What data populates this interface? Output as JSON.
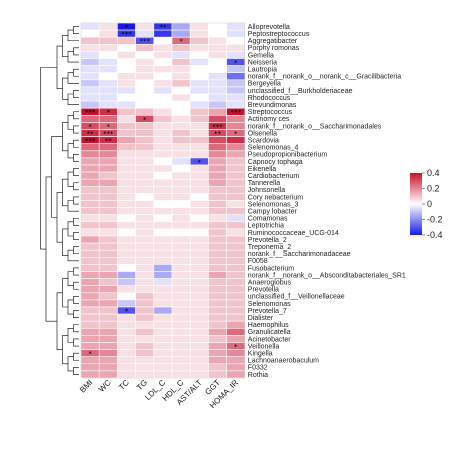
{
  "chart_data": {
    "type": "heatmap",
    "title": "",
    "xlabel": "",
    "ylabel": "",
    "columns": [
      "BMI",
      "WC",
      "TC",
      "TG",
      "LDL_C",
      "HDL_C",
      "AST/ALT",
      "GGT",
      "HOMA_IR"
    ],
    "rows": [
      "Alloprevotella",
      "Peptostreptococcus",
      "Aggregatibacter",
      "Porphy romonas",
      "Gemella",
      "Neisseria",
      "Lautropia",
      "norank_f__norank_o__norank_c__Gracilibacteria",
      "Bergeyella",
      "unclassified_f__Burkholderiaceae",
      "Rhodococcus",
      "Brevundimonas",
      "Streptococcus",
      "Actinomy ces",
      "norank_f__norank_o__Saccharimonadales",
      "Olsenella",
      "Scardovia",
      "Selenomonas_4",
      "Pseudopropionibacterium",
      "Capnocy tophaga",
      "Eikenella",
      "Cardiobacterium",
      "Tannerella",
      "Johnsonella",
      "Cory nebacterium",
      "Selenomonas_3",
      "Campy lobacter",
      "Comamonas",
      "Leptotrichia",
      "Ruminococcaceae_UCG-014",
      "Prevotella_2",
      "Treponema_2",
      "norank_f__Saccharimonadaceae",
      "F0058",
      "Fusobacterium",
      "norank_f__norank_o__Absconditabacteriales_SR1",
      "Anaeroglobus",
      "Prevotella",
      "unclassified_f__Veillonellaceae",
      "Selenomonas",
      "Prevotella_7",
      "Dialister",
      "Haemophilus",
      "Granulicatella",
      "Acinetobacter",
      "Veillonella",
      "Kingella",
      "Lachnoanaerobaculum",
      "F0332",
      "Rothia"
    ],
    "values": [
      [
        -0.05,
        0.05,
        -0.4,
        0.05,
        -0.35,
        -0.15,
        0.05,
        0.0,
        -0.05
      ],
      [
        0.0,
        0.05,
        -0.35,
        -0.05,
        -0.35,
        -0.15,
        0.05,
        0.0,
        -0.05
      ],
      [
        0.1,
        0.1,
        0.1,
        -0.3,
        0.0,
        0.25,
        0.1,
        0.05,
        0.0
      ],
      [
        0.05,
        0.05,
        0.0,
        0.1,
        0.05,
        0.1,
        0.05,
        0.05,
        0.05
      ],
      [
        -0.05,
        0.0,
        0.05,
        0.0,
        0.05,
        -0.05,
        0.0,
        0.05,
        -0.05
      ],
      [
        -0.1,
        -0.05,
        0.0,
        0.05,
        0.0,
        0.1,
        -0.05,
        0.0,
        -0.3
      ],
      [
        -0.05,
        -0.05,
        0.0,
        0.05,
        0.05,
        0.05,
        0.0,
        0.0,
        -0.1
      ],
      [
        -0.05,
        0.0,
        0.05,
        0.05,
        0.0,
        0.05,
        0.0,
        -0.05,
        -0.25
      ],
      [
        -0.1,
        -0.05,
        0.05,
        0.0,
        0.05,
        0.1,
        -0.05,
        -0.05,
        -0.1
      ],
      [
        -0.05,
        -0.05,
        -0.05,
        0.0,
        -0.05,
        0.0,
        -0.05,
        -0.05,
        -0.1
      ],
      [
        -0.05,
        -0.05,
        0.0,
        0.0,
        0.0,
        0.05,
        0.0,
        -0.05,
        -0.05
      ],
      [
        -0.1,
        -0.05,
        -0.05,
        0.0,
        0.0,
        0.0,
        -0.05,
        -0.1,
        -0.05
      ],
      [
        0.4,
        0.35,
        0.1,
        0.1,
        0.05,
        0.0,
        0.1,
        0.15,
        0.4
      ],
      [
        0.25,
        0.25,
        0.05,
        0.3,
        0.1,
        0.05,
        0.1,
        0.3,
        0.2
      ],
      [
        0.3,
        0.25,
        0.1,
        0.1,
        0.05,
        0.05,
        0.05,
        0.35,
        0.2
      ],
      [
        0.35,
        0.3,
        0.1,
        0.1,
        0.05,
        0.1,
        0.05,
        0.3,
        0.25
      ],
      [
        0.4,
        0.35,
        0.15,
        0.1,
        0.05,
        0.1,
        0.1,
        0.3,
        0.35
      ],
      [
        0.25,
        0.25,
        0.1,
        0.1,
        0.05,
        0.05,
        0.05,
        0.25,
        0.2
      ],
      [
        0.2,
        0.2,
        0.05,
        0.05,
        0.05,
        0.05,
        0.05,
        0.2,
        0.15
      ],
      [
        0.15,
        0.15,
        0.05,
        0.05,
        0.0,
        -0.05,
        -0.3,
        0.15,
        0.1
      ],
      [
        0.15,
        0.15,
        0.05,
        0.05,
        0.05,
        0.0,
        0.05,
        0.15,
        0.1
      ],
      [
        0.15,
        0.1,
        0.05,
        0.05,
        0.0,
        0.05,
        0.05,
        0.15,
        0.1
      ],
      [
        0.15,
        0.15,
        0.05,
        0.05,
        0.05,
        0.05,
        0.05,
        0.15,
        0.1
      ],
      [
        0.1,
        0.1,
        0.05,
        0.05,
        0.05,
        0.05,
        0.05,
        0.1,
        0.1
      ],
      [
        0.1,
        0.1,
        0.05,
        0.0,
        0.05,
        0.05,
        0.0,
        0.1,
        0.1
      ],
      [
        0.1,
        0.1,
        0.05,
        0.05,
        0.0,
        0.0,
        0.05,
        0.1,
        0.05
      ],
      [
        0.1,
        0.1,
        0.05,
        0.05,
        0.05,
        0.05,
        0.05,
        0.1,
        0.1
      ],
      [
        0.05,
        0.05,
        0.0,
        0.05,
        0.0,
        0.05,
        0.0,
        0.05,
        -0.05
      ],
      [
        0.1,
        0.1,
        0.05,
        0.05,
        0.05,
        0.05,
        0.05,
        0.1,
        0.1
      ],
      [
        0.05,
        0.05,
        0.0,
        0.05,
        0.0,
        0.0,
        0.0,
        0.1,
        0.05
      ],
      [
        0.15,
        0.1,
        0.05,
        0.05,
        0.05,
        0.05,
        0.05,
        0.1,
        0.1
      ],
      [
        0.1,
        0.1,
        0.05,
        0.05,
        0.05,
        0.05,
        0.05,
        0.1,
        0.1
      ],
      [
        0.1,
        0.1,
        0.05,
        0.05,
        0.05,
        0.05,
        0.05,
        0.1,
        0.1
      ],
      [
        0.1,
        0.1,
        0.05,
        0.05,
        0.05,
        0.05,
        0.05,
        0.1,
        0.1
      ],
      [
        0.1,
        0.1,
        0.0,
        0.05,
        -0.15,
        0.05,
        0.05,
        0.1,
        0.1
      ],
      [
        0.15,
        0.15,
        -0.15,
        0.05,
        -0.15,
        0.05,
        0.05,
        0.15,
        0.1
      ],
      [
        0.15,
        0.1,
        -0.1,
        0.05,
        -0.05,
        0.05,
        0.05,
        0.1,
        0.1
      ],
      [
        0.15,
        0.15,
        0.05,
        0.05,
        0.05,
        0.05,
        0.05,
        0.1,
        0.1
      ],
      [
        0.15,
        0.1,
        0.0,
        0.1,
        0.05,
        0.05,
        0.05,
        0.1,
        0.1
      ],
      [
        0.15,
        0.15,
        -0.1,
        0.1,
        0.05,
        0.05,
        0.05,
        0.1,
        0.1
      ],
      [
        0.1,
        0.1,
        -0.3,
        0.1,
        -0.15,
        0.05,
        0.05,
        0.1,
        0.1
      ],
      [
        0.1,
        0.1,
        0.05,
        0.1,
        0.05,
        0.05,
        0.05,
        0.1,
        0.1
      ],
      [
        0.1,
        0.1,
        0.05,
        0.05,
        0.05,
        0.05,
        0.05,
        0.1,
        0.15
      ],
      [
        0.15,
        0.15,
        0.05,
        0.1,
        0.05,
        0.05,
        0.05,
        0.15,
        0.25
      ],
      [
        0.15,
        0.15,
        0.05,
        0.05,
        0.05,
        0.05,
        0.05,
        0.1,
        0.15
      ],
      [
        0.15,
        0.15,
        0.05,
        0.1,
        0.05,
        0.05,
        0.05,
        0.15,
        0.25
      ],
      [
        0.25,
        0.2,
        0.05,
        0.1,
        0.05,
        0.05,
        0.05,
        0.15,
        0.2
      ],
      [
        0.15,
        0.15,
        0.05,
        0.05,
        0.05,
        0.05,
        0.05,
        0.15,
        0.15
      ],
      [
        0.15,
        0.15,
        0.05,
        0.05,
        0.05,
        0.05,
        0.05,
        0.1,
        0.15
      ],
      [
        0.15,
        0.15,
        0.05,
        0.05,
        0.05,
        0.05,
        0.05,
        0.1,
        0.15
      ]
    ],
    "significance": [
      [
        "",
        "",
        "*",
        "",
        "**",
        "",
        "",
        "",
        ""
      ],
      [
        "",
        "",
        "***",
        "",
        "",
        "",
        "",
        "",
        ""
      ],
      [
        "",
        "",
        "",
        "***",
        "",
        "*",
        "",
        "",
        ""
      ],
      [
        "",
        "",
        "",
        "",
        "",
        "",
        "",
        "",
        ""
      ],
      [
        "",
        "",
        "",
        "",
        "",
        "",
        "",
        "",
        ""
      ],
      [
        "",
        "",
        "",
        "",
        "",
        "",
        "",
        "",
        "*"
      ],
      [
        "",
        "",
        "",
        "",
        "",
        "",
        "",
        "",
        ""
      ],
      [
        "",
        "",
        "",
        "",
        "",
        "",
        "",
        "",
        ""
      ],
      [
        "",
        "",
        "",
        "",
        "",
        "",
        "",
        "",
        ""
      ],
      [
        "",
        "",
        "",
        "",
        "",
        "",
        "",
        "",
        ""
      ],
      [
        "",
        "",
        "",
        "",
        "",
        "",
        "",
        "",
        ""
      ],
      [
        "",
        "",
        "",
        "",
        "",
        "",
        "",
        "",
        ""
      ],
      [
        "***",
        "*",
        "",
        "",
        "",
        "",
        "",
        "",
        "***"
      ],
      [
        "",
        "",
        "",
        "*",
        "",
        "",
        "",
        "",
        ""
      ],
      [
        "*",
        "*",
        "",
        "",
        "",
        "",
        "",
        "***",
        ""
      ],
      [
        "**",
        "***",
        "",
        "",
        "",
        "",
        "",
        "**",
        "*"
      ],
      [
        "***",
        "**",
        "",
        "",
        "",
        "",
        "",
        "",
        ""
      ],
      [
        "",
        "",
        "",
        "",
        "",
        "",
        "",
        "",
        ""
      ],
      [
        "",
        "",
        "",
        "",
        "",
        "",
        "",
        "",
        ""
      ],
      [
        "",
        "",
        "",
        "",
        "",
        "",
        "*",
        "",
        ""
      ],
      [
        "",
        "",
        "",
        "",
        "",
        "",
        "",
        "",
        ""
      ],
      [
        "",
        "",
        "",
        "",
        "",
        "",
        "",
        "",
        ""
      ],
      [
        "",
        "",
        "",
        "",
        "",
        "",
        "",
        "",
        ""
      ],
      [
        "",
        "",
        "",
        "",
        "",
        "",
        "",
        "",
        ""
      ],
      [
        "",
        "",
        "",
        "",
        "",
        "",
        "",
        "",
        ""
      ],
      [
        "",
        "",
        "",
        "",
        "",
        "",
        "",
        "",
        ""
      ],
      [
        "",
        "",
        "",
        "",
        "",
        "",
        "",
        "",
        ""
      ],
      [
        "",
        "",
        "",
        "",
        "",
        "",
        "",
        "",
        ""
      ],
      [
        "",
        "",
        "",
        "",
        "",
        "",
        "",
        "",
        ""
      ],
      [
        "",
        "",
        "",
        "",
        "",
        "",
        "",
        "",
        ""
      ],
      [
        "",
        "",
        "",
        "",
        "",
        "",
        "",
        "",
        ""
      ],
      [
        "",
        "",
        "",
        "",
        "",
        "",
        "",
        "",
        ""
      ],
      [
        "",
        "",
        "",
        "",
        "",
        "",
        "",
        "",
        ""
      ],
      [
        "",
        "",
        "",
        "",
        "",
        "",
        "",
        "",
        ""
      ],
      [
        "",
        "",
        "",
        "",
        "",
        "",
        "",
        "",
        ""
      ],
      [
        "",
        "",
        "",
        "",
        "",
        "",
        "",
        "",
        ""
      ],
      [
        "",
        "",
        "",
        "",
        "",
        "",
        "",
        "",
        ""
      ],
      [
        "",
        "",
        "",
        "",
        "",
        "",
        "",
        "",
        ""
      ],
      [
        "",
        "",
        "",
        "",
        "",
        "",
        "",
        "",
        ""
      ],
      [
        "",
        "",
        "",
        "",
        "",
        "",
        "",
        "",
        ""
      ],
      [
        "",
        "",
        "*",
        "",
        "",
        "",
        "",
        "",
        ""
      ],
      [
        "",
        "",
        "",
        "",
        "",
        "",
        "",
        "",
        ""
      ],
      [
        "",
        "",
        "",
        "",
        "",
        "",
        "",
        "",
        ""
      ],
      [
        "",
        "",
        "",
        "",
        "",
        "",
        "",
        "",
        ""
      ],
      [
        "",
        "",
        "",
        "",
        "",
        "",
        "",
        "",
        ""
      ],
      [
        "",
        "",
        "",
        "",
        "",
        "",
        "",
        "",
        "*"
      ],
      [
        "*",
        "",
        "",
        "",
        "",
        "",
        "",
        "",
        ""
      ],
      [
        "",
        "",
        "",
        "",
        "",
        "",
        "",
        "",
        ""
      ],
      [
        "",
        "",
        "",
        "",
        "",
        "",
        "",
        "",
        ""
      ],
      [
        "",
        "",
        "",
        "",
        "",
        "",
        "",
        "",
        ""
      ]
    ],
    "color_scale": {
      "min": -0.4,
      "max": 0.4,
      "ticks": [
        0.4,
        0.2,
        0,
        -0.2,
        -0.4
      ],
      "tick_labels": [
        "0.4",
        "0.2",
        "0",
        "-0.2",
        "-0.4"
      ],
      "low_color": "#1a1ae6",
      "mid_color": "#ffffff",
      "high_color": "#c8102e"
    },
    "legend": "right",
    "grid": true
  }
}
